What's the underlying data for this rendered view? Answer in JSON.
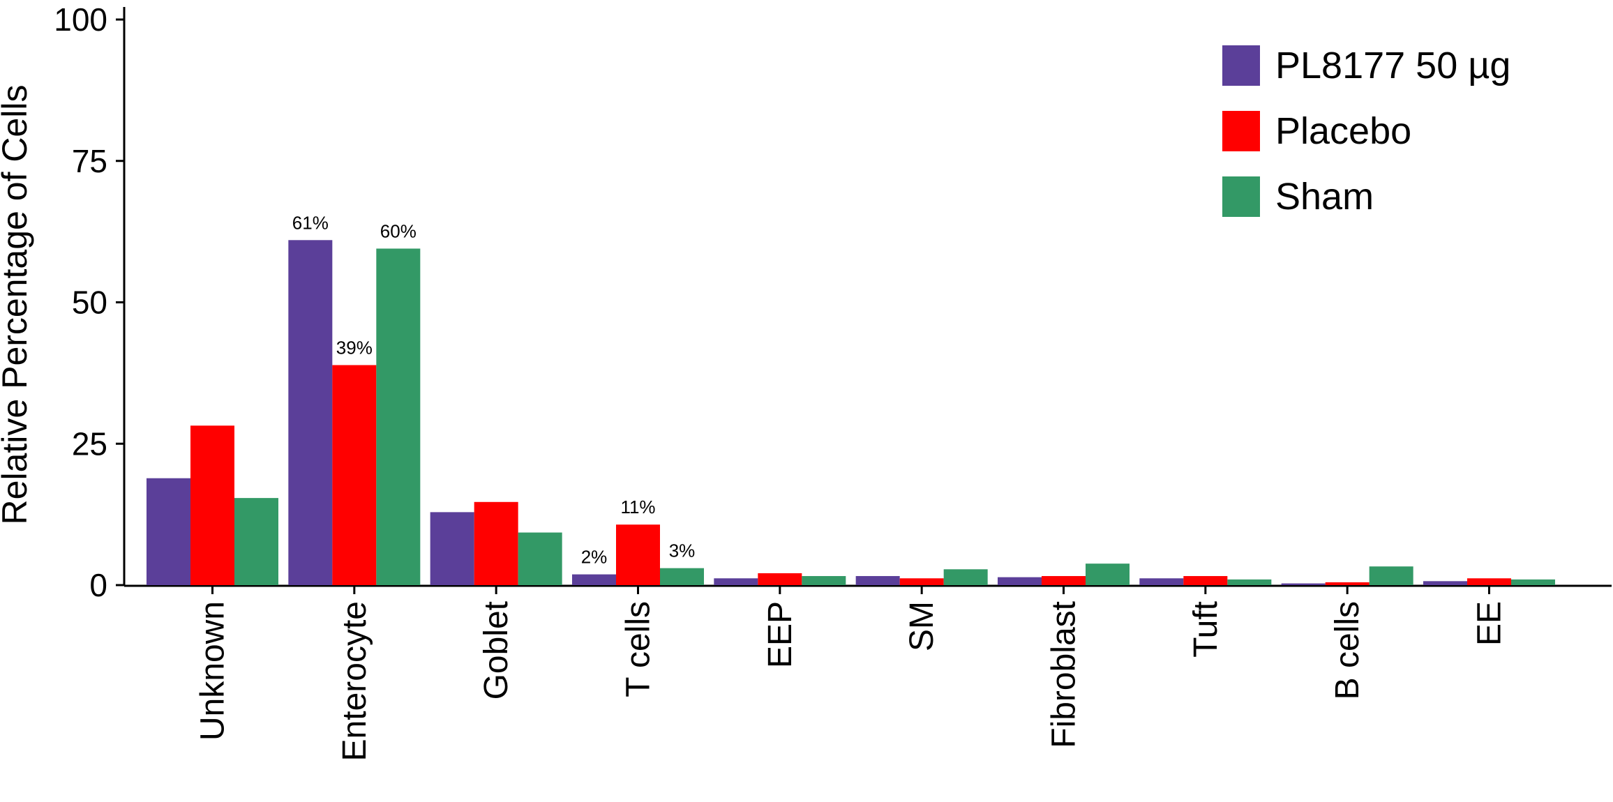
{
  "chart_data": {
    "type": "bar",
    "ylabel": "Relative Percentage of Cells",
    "xlabel": "",
    "ylim": [
      0,
      100
    ],
    "yticks": [
      0,
      25,
      50,
      75,
      100
    ],
    "legend_position": "top-right",
    "grid": false,
    "categories": [
      "Unknown",
      "Enterocyte",
      "Goblet",
      "T cells",
      "EEP",
      "SM",
      "Fibroblast",
      "Tuft",
      "B cells",
      "EE"
    ],
    "series": [
      {
        "name": "PL8177 50 µg",
        "color": "#5B3F99",
        "values": [
          18.9,
          61.0,
          12.9,
          1.9,
          1.2,
          1.6,
          1.4,
          1.2,
          0.3,
          0.7
        ],
        "labels": [
          "",
          "61%",
          "",
          "2%",
          "",
          "",
          "",
          "",
          "",
          ""
        ]
      },
      {
        "name": "Placebo",
        "color": "#FF0000",
        "values": [
          28.2,
          38.9,
          14.7,
          10.7,
          2.1,
          1.2,
          1.6,
          1.6,
          0.5,
          1.2
        ],
        "labels": [
          "",
          "39%",
          "",
          "11%",
          "",
          "",
          "",
          "",
          "",
          ""
        ]
      },
      {
        "name": "Sham",
        "color": "#339966",
        "values": [
          15.4,
          59.5,
          9.3,
          3.0,
          1.6,
          2.8,
          3.8,
          1.0,
          3.3,
          1.0
        ],
        "labels": [
          "",
          "60%",
          "",
          "3%",
          "",
          "",
          "",
          "",
          "",
          ""
        ]
      }
    ]
  }
}
